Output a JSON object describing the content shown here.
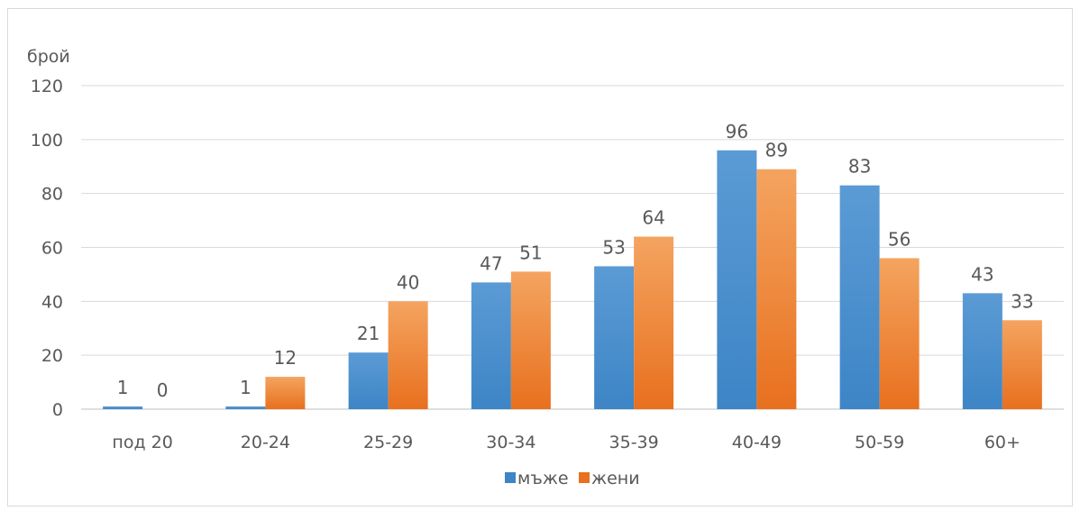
{
  "chart_data": {
    "type": "bar",
    "ylabel": "брой",
    "ylim": [
      0,
      120
    ],
    "yticks": [
      0,
      20,
      40,
      60,
      80,
      100,
      120
    ],
    "categories": [
      "под 20",
      "20-24",
      "25-29",
      "30-34",
      "35-39",
      "40-49",
      "50-59",
      "60+"
    ],
    "series": [
      {
        "name": "мъже",
        "values": [
          1,
          1,
          21,
          47,
          53,
          96,
          83,
          43
        ],
        "color": "#5b9bd5",
        "color_dark": "#3d85c6"
      },
      {
        "name": "жени",
        "values": [
          0,
          12,
          40,
          51,
          64,
          89,
          56,
          33
        ],
        "color": "#f4a460",
        "color_dark": "#e8701e"
      }
    ],
    "grid": true,
    "legend": "bottom-center",
    "data_labels": true
  }
}
